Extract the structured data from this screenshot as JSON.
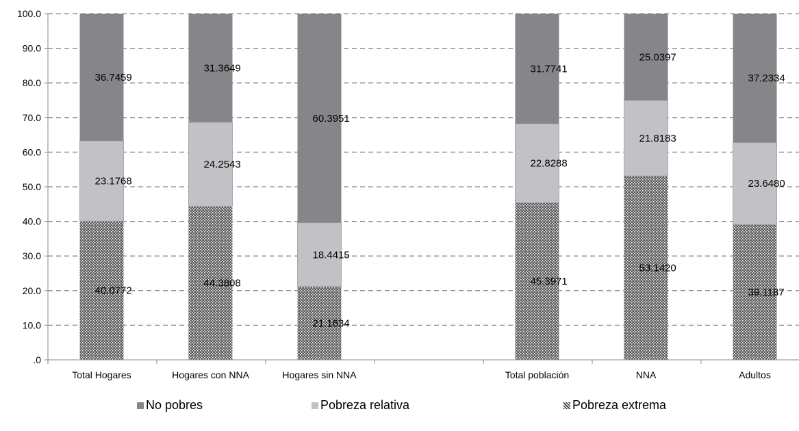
{
  "chart_data": {
    "type": "bar",
    "stacked": true,
    "categories": [
      "Total Hogares",
      "Hogares con NNA",
      "Hogares sin NNA",
      "",
      "Total población",
      "NNA",
      "Adultos"
    ],
    "yticks": [
      "100.0",
      "90.0",
      "80.0",
      "70.0",
      "60.0",
      "50.0",
      "40.0",
      "30.0",
      "20.0",
      "10.0",
      ".0"
    ],
    "ylim": [
      0,
      100
    ],
    "grid": true,
    "legend_position": "bottom",
    "series": [
      {
        "name": "Pobreza extrema",
        "color": "#555555",
        "pattern": "dots",
        "values": [
          40.0772,
          44.3808,
          21.1634,
          null,
          45.3971,
          53.142,
          39.1187
        ],
        "labels": [
          "40.0772",
          "44.3808",
          "21.1634",
          "",
          "45.3971",
          "53.1420",
          "39.1187"
        ]
      },
      {
        "name": "Pobreza relativa",
        "color": "#c2c2c6",
        "values": [
          23.1768,
          24.2543,
          18.4415,
          null,
          22.8288,
          21.8183,
          23.648
        ],
        "labels": [
          "23.1768",
          "24.2543",
          "18.4415",
          "",
          "22.8288",
          "21.8183",
          "23.6480"
        ]
      },
      {
        "name": "No pobres",
        "color": "#86868a",
        "values": [
          36.7459,
          31.3649,
          60.3951,
          null,
          31.7741,
          25.0397,
          37.2334
        ],
        "labels": [
          "36.7459",
          "31.3649",
          "60.3951",
          "",
          "31.7741",
          "25.0397",
          "37.2334"
        ]
      }
    ]
  },
  "legend": {
    "items": [
      {
        "label": "No pobres",
        "color": "#86868a",
        "icon": "solid-square-icon"
      },
      {
        "label": "Pobreza relativa",
        "color": "#c2c2c6",
        "icon": "solid-square-icon"
      },
      {
        "label": "Pobreza extrema",
        "color": "#555555",
        "icon": "dotted-square-icon"
      }
    ]
  }
}
